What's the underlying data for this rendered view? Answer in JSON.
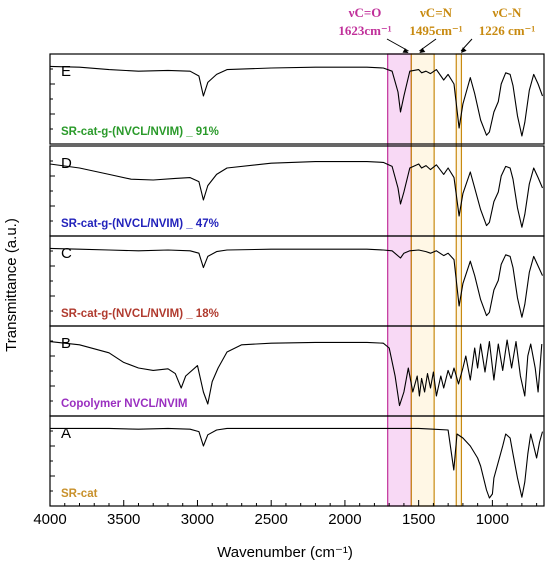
{
  "chart_data": {
    "type": "line",
    "xlabel": "Wavenumber (cm⁻¹)",
    "ylabel": "Transmittance (a.u.)",
    "xlim": [
      4000,
      650
    ],
    "x_reversed": true,
    "x_ticks": [
      "4000",
      "3500",
      "3000",
      "2500",
      "2000",
      "1500",
      "1000"
    ],
    "x_tick_values": [
      4000,
      3500,
      3000,
      2500,
      2000,
      1500,
      1000
    ],
    "grid": false,
    "panels": [
      {
        "letter": "E",
        "label": "SR-cat-g-(NVCL/NVIM) _ 91%",
        "label_color": "#2a9a2a",
        "points": [
          [
            4000,
            0.92
          ],
          [
            3800,
            0.91
          ],
          [
            3600,
            0.88
          ],
          [
            3400,
            0.86
          ],
          [
            3200,
            0.87
          ],
          [
            3050,
            0.86
          ],
          [
            2990,
            0.8
          ],
          [
            2960,
            0.55
          ],
          [
            2930,
            0.72
          ],
          [
            2870,
            0.82
          ],
          [
            2800,
            0.88
          ],
          [
            2500,
            0.9
          ],
          [
            2200,
            0.91
          ],
          [
            2000,
            0.91
          ],
          [
            1850,
            0.91
          ],
          [
            1740,
            0.9
          ],
          [
            1680,
            0.86
          ],
          [
            1640,
            0.6
          ],
          [
            1623,
            0.35
          ],
          [
            1600,
            0.55
          ],
          [
            1560,
            0.86
          ],
          [
            1500,
            0.88
          ],
          [
            1480,
            0.84
          ],
          [
            1450,
            0.86
          ],
          [
            1420,
            0.83
          ],
          [
            1380,
            0.88
          ],
          [
            1330,
            0.75
          ],
          [
            1300,
            0.82
          ],
          [
            1260,
            0.7
          ],
          [
            1226,
            0.15
          ],
          [
            1200,
            0.45
          ],
          [
            1150,
            0.78
          ],
          [
            1120,
            0.58
          ],
          [
            1080,
            0.25
          ],
          [
            1040,
            0.06
          ],
          [
            1020,
            0.1
          ],
          [
            990,
            0.35
          ],
          [
            960,
            0.48
          ],
          [
            940,
            0.7
          ],
          [
            910,
            0.84
          ],
          [
            880,
            0.82
          ],
          [
            860,
            0.68
          ],
          [
            830,
            0.3
          ],
          [
            800,
            0.05
          ],
          [
            780,
            0.22
          ],
          [
            750,
            0.62
          ],
          [
            720,
            0.82
          ],
          [
            690,
            0.7
          ],
          [
            660,
            0.55
          ]
        ]
      },
      {
        "letter": "D",
        "label": "SR-cat-g-(NVCL/NVIM) _ 47%",
        "label_color": "#2222bb",
        "points": [
          [
            4000,
            0.85
          ],
          [
            3800,
            0.8
          ],
          [
            3600,
            0.72
          ],
          [
            3450,
            0.66
          ],
          [
            3300,
            0.65
          ],
          [
            3150,
            0.67
          ],
          [
            3050,
            0.68
          ],
          [
            2990,
            0.63
          ],
          [
            2960,
            0.4
          ],
          [
            2930,
            0.58
          ],
          [
            2870,
            0.72
          ],
          [
            2800,
            0.8
          ],
          [
            2500,
            0.86
          ],
          [
            2200,
            0.88
          ],
          [
            2000,
            0.88
          ],
          [
            1850,
            0.88
          ],
          [
            1740,
            0.87
          ],
          [
            1680,
            0.82
          ],
          [
            1640,
            0.55
          ],
          [
            1623,
            0.35
          ],
          [
            1600,
            0.5
          ],
          [
            1560,
            0.8
          ],
          [
            1500,
            0.85
          ],
          [
            1480,
            0.8
          ],
          [
            1450,
            0.83
          ],
          [
            1420,
            0.78
          ],
          [
            1380,
            0.84
          ],
          [
            1330,
            0.72
          ],
          [
            1300,
            0.8
          ],
          [
            1260,
            0.68
          ],
          [
            1226,
            0.2
          ],
          [
            1200,
            0.48
          ],
          [
            1150,
            0.75
          ],
          [
            1120,
            0.55
          ],
          [
            1080,
            0.28
          ],
          [
            1040,
            0.08
          ],
          [
            1020,
            0.12
          ],
          [
            990,
            0.38
          ],
          [
            960,
            0.5
          ],
          [
            940,
            0.7
          ],
          [
            910,
            0.82
          ],
          [
            880,
            0.8
          ],
          [
            860,
            0.66
          ],
          [
            830,
            0.3
          ],
          [
            800,
            0.06
          ],
          [
            780,
            0.22
          ],
          [
            750,
            0.6
          ],
          [
            720,
            0.8
          ],
          [
            690,
            0.68
          ],
          [
            660,
            0.55
          ]
        ]
      },
      {
        "letter": "C",
        "label": "SR-cat-g-(NVCL/NVIM) _ 18%",
        "label_color": "#b03a2e",
        "points": [
          [
            4000,
            0.92
          ],
          [
            3800,
            0.91
          ],
          [
            3600,
            0.9
          ],
          [
            3400,
            0.89
          ],
          [
            3200,
            0.9
          ],
          [
            3050,
            0.89
          ],
          [
            2990,
            0.86
          ],
          [
            2960,
            0.68
          ],
          [
            2930,
            0.82
          ],
          [
            2870,
            0.88
          ],
          [
            2800,
            0.9
          ],
          [
            2500,
            0.91
          ],
          [
            2200,
            0.91
          ],
          [
            2000,
            0.91
          ],
          [
            1850,
            0.91
          ],
          [
            1740,
            0.9
          ],
          [
            1680,
            0.89
          ],
          [
            1623,
            0.8
          ],
          [
            1600,
            0.86
          ],
          [
            1560,
            0.89
          ],
          [
            1500,
            0.9
          ],
          [
            1450,
            0.88
          ],
          [
            1420,
            0.86
          ],
          [
            1380,
            0.89
          ],
          [
            1330,
            0.83
          ],
          [
            1300,
            0.86
          ],
          [
            1260,
            0.78
          ],
          [
            1226,
            0.2
          ],
          [
            1200,
            0.48
          ],
          [
            1150,
            0.76
          ],
          [
            1120,
            0.58
          ],
          [
            1080,
            0.28
          ],
          [
            1040,
            0.08
          ],
          [
            1020,
            0.12
          ],
          [
            990,
            0.4
          ],
          [
            960,
            0.52
          ],
          [
            940,
            0.72
          ],
          [
            910,
            0.84
          ],
          [
            880,
            0.82
          ],
          [
            860,
            0.68
          ],
          [
            830,
            0.3
          ],
          [
            800,
            0.06
          ],
          [
            780,
            0.22
          ],
          [
            750,
            0.62
          ],
          [
            720,
            0.82
          ],
          [
            690,
            0.7
          ],
          [
            660,
            0.58
          ]
        ]
      },
      {
        "letter": "B",
        "label": "Copolymer NVCL/NVIM",
        "label_color": "#9a2fc0",
        "points": [
          [
            4000,
            0.88
          ],
          [
            3800,
            0.84
          ],
          [
            3600,
            0.74
          ],
          [
            3500,
            0.62
          ],
          [
            3400,
            0.55
          ],
          [
            3300,
            0.52
          ],
          [
            3200,
            0.54
          ],
          [
            3150,
            0.48
          ],
          [
            3110,
            0.3
          ],
          [
            3080,
            0.45
          ],
          [
            3000,
            0.58
          ],
          [
            2960,
            0.25
          ],
          [
            2930,
            0.1
          ],
          [
            2900,
            0.38
          ],
          [
            2860,
            0.55
          ],
          [
            2800,
            0.75
          ],
          [
            2700,
            0.84
          ],
          [
            2500,
            0.86
          ],
          [
            2200,
            0.87
          ],
          [
            2000,
            0.87
          ],
          [
            1850,
            0.87
          ],
          [
            1740,
            0.86
          ],
          [
            1700,
            0.8
          ],
          [
            1660,
            0.45
          ],
          [
            1630,
            0.08
          ],
          [
            1600,
            0.25
          ],
          [
            1570,
            0.55
          ],
          [
            1540,
            0.25
          ],
          [
            1510,
            0.45
          ],
          [
            1495,
            0.2
          ],
          [
            1480,
            0.42
          ],
          [
            1460,
            0.25
          ],
          [
            1440,
            0.48
          ],
          [
            1420,
            0.3
          ],
          [
            1400,
            0.5
          ],
          [
            1380,
            0.2
          ],
          [
            1350,
            0.45
          ],
          [
            1330,
            0.3
          ],
          [
            1300,
            0.52
          ],
          [
            1280,
            0.42
          ],
          [
            1260,
            0.55
          ],
          [
            1230,
            0.35
          ],
          [
            1200,
            0.55
          ],
          [
            1180,
            0.7
          ],
          [
            1150,
            0.4
          ],
          [
            1120,
            0.8
          ],
          [
            1100,
            0.55
          ],
          [
            1080,
            0.85
          ],
          [
            1050,
            0.5
          ],
          [
            1020,
            0.88
          ],
          [
            990,
            0.4
          ],
          [
            960,
            0.85
          ],
          [
            930,
            0.52
          ],
          [
            900,
            0.9
          ],
          [
            870,
            0.55
          ],
          [
            840,
            0.88
          ],
          [
            810,
            0.45
          ],
          [
            780,
            0.2
          ],
          [
            760,
            0.7
          ],
          [
            740,
            0.85
          ],
          [
            710,
            0.55
          ],
          [
            690,
            0.25
          ],
          [
            665,
            0.85
          ]
        ]
      },
      {
        "letter": "A",
        "label": "SR-cat",
        "label_color": "#c8902a",
        "points": [
          [
            4000,
            0.92
          ],
          [
            3800,
            0.92
          ],
          [
            3600,
            0.92
          ],
          [
            3400,
            0.91
          ],
          [
            3200,
            0.92
          ],
          [
            3050,
            0.91
          ],
          [
            2990,
            0.88
          ],
          [
            2960,
            0.7
          ],
          [
            2930,
            0.84
          ],
          [
            2870,
            0.9
          ],
          [
            2800,
            0.92
          ],
          [
            2500,
            0.92
          ],
          [
            2200,
            0.92
          ],
          [
            2000,
            0.92
          ],
          [
            1700,
            0.92
          ],
          [
            1500,
            0.92
          ],
          [
            1400,
            0.91
          ],
          [
            1300,
            0.9
          ],
          [
            1262,
            0.4
          ],
          [
            1240,
            0.85
          ],
          [
            1200,
            0.8
          ],
          [
            1150,
            0.7
          ],
          [
            1100,
            0.55
          ],
          [
            1080,
            0.45
          ],
          [
            1040,
            0.15
          ],
          [
            1020,
            0.05
          ],
          [
            1000,
            0.1
          ],
          [
            990,
            0.3
          ],
          [
            960,
            0.5
          ],
          [
            930,
            0.7
          ],
          [
            910,
            0.85
          ],
          [
            880,
            0.8
          ],
          [
            860,
            0.6
          ],
          [
            830,
            0.3
          ],
          [
            800,
            0.06
          ],
          [
            780,
            0.25
          ],
          [
            760,
            0.6
          ],
          [
            740,
            0.85
          ],
          [
            720,
            0.7
          ],
          [
            700,
            0.55
          ],
          [
            680,
            0.75
          ],
          [
            660,
            0.88
          ]
        ]
      }
    ],
    "bands": [
      {
        "label": "νC=O",
        "value": "1623cm⁻¹",
        "color": "#c0309a",
        "x_from": 1710,
        "x_to": 1550
      },
      {
        "label": "νC=N",
        "value": "1495cm⁻¹",
        "color": "#c88a10",
        "x_from": 1550,
        "x_to": 1395
      },
      {
        "label": "νC-N",
        "value": "1226 cm⁻¹",
        "color": "#c88a10",
        "x_from": 1245,
        "x_to": 1210
      }
    ]
  }
}
